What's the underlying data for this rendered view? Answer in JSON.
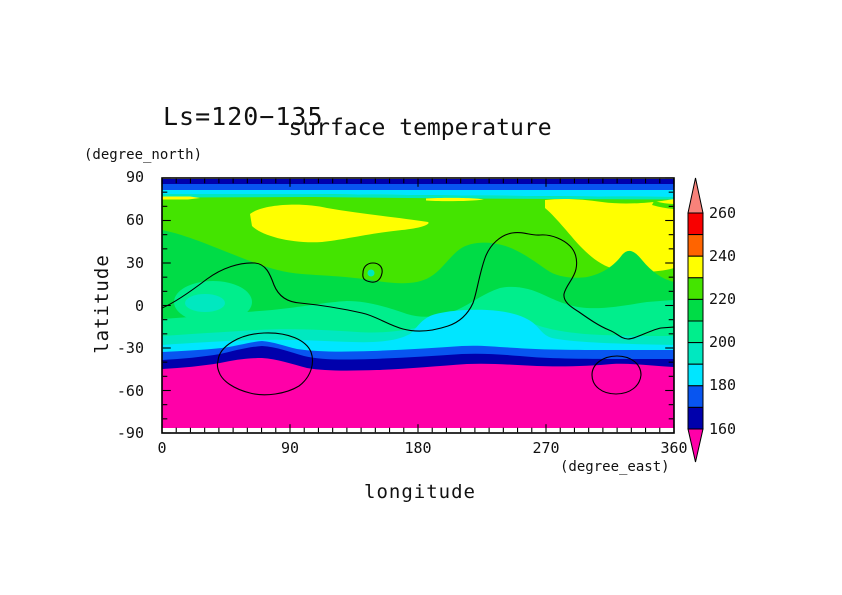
{
  "annotation": "Ls=120−135",
  "title": "surface temperature",
  "axes": {
    "y_unit": "(degree_north)",
    "y_label": "latitude",
    "y_ticks": [
      "90",
      "60",
      "30",
      "0",
      "-30",
      "-60",
      "-90"
    ],
    "x_label": "longitude",
    "x_unit": "(degree_east)",
    "x_ticks": [
      "0",
      "90",
      "180",
      "270",
      "360"
    ]
  },
  "colorbar": {
    "tick_labels": [
      "260",
      "240",
      "220",
      "200",
      "180",
      "160"
    ],
    "cells_top_to_bottom": [
      "c250_260",
      "c240_250",
      "c230_240",
      "c220_230",
      "c210_220",
      "c200_210",
      "c190_200",
      "c180_190",
      "c170_180",
      "c160_170"
    ],
    "arrow_top_color_key": "above_260",
    "arrow_bottom_color_key": "below_160"
  },
  "palette": {
    "above_260": "#F8827A",
    "c250_260": "#F80000",
    "c240_250": "#FF6400",
    "c230_240": "#FFFF00",
    "c220_230": "#44E400",
    "c210_220": "#00DC46",
    "c200_210": "#00EE8C",
    "c190_200": "#00E8C0",
    "c180_190": "#00E6FF",
    "c170_180": "#0855F0",
    "c160_170": "#0000AC",
    "below_160": "#FF00A8",
    "contour_line": "#000000",
    "axis_line": "#000000"
  },
  "chart_data": {
    "type": "heatmap",
    "subtype": "filled_contour_map",
    "title": "surface temperature",
    "annotation": "Ls=120−135",
    "xlabel": "longitude (degree_east)",
    "ylabel": "latitude (degree_north)",
    "xlim": [
      0,
      360
    ],
    "ylim": [
      -90,
      90
    ],
    "x_major_ticks": [
      0,
      90,
      180,
      270,
      360
    ],
    "y_major_ticks": [
      90,
      60,
      30,
      0,
      -30,
      -60,
      -90
    ],
    "contour_levels": [
      160,
      170,
      180,
      190,
      200,
      210,
      220,
      230,
      240,
      250,
      260
    ],
    "colorbar_labeled_levels": [
      260,
      240,
      220,
      200,
      180,
      160
    ],
    "legend_position": "right",
    "grid": false,
    "overlay": "single thin black contour outline meandering across mid-latitudes plus closed ovals near (65E,-43), (310E,-47) and a small closed loop near (147E,24)",
    "lon": [
      0,
      45,
      90,
      135,
      180,
      225,
      270,
      315,
      360
    ],
    "lat": [
      85,
      70,
      55,
      40,
      25,
      10,
      -5,
      -20,
      -30,
      -40,
      -50,
      -60,
      -75,
      -85
    ],
    "values": [
      [
        168,
        168,
        168,
        168,
        168,
        168,
        168,
        168,
        168
      ],
      [
        225,
        225,
        225,
        225,
        225,
        225,
        235,
        235,
        235
      ],
      [
        225,
        225,
        235,
        235,
        225,
        225,
        225,
        235,
        235
      ],
      [
        215,
        225,
        225,
        225,
        225,
        215,
        225,
        235,
        235
      ],
      [
        215,
        215,
        225,
        225,
        225,
        215,
        215,
        215,
        225
      ],
      [
        215,
        205,
        215,
        215,
        215,
        215,
        205,
        215,
        215
      ],
      [
        215,
        205,
        205,
        205,
        215,
        185,
        205,
        205,
        205
      ],
      [
        205,
        195,
        195,
        195,
        185,
        185,
        195,
        195,
        195
      ],
      [
        185,
        180,
        175,
        180,
        185,
        185,
        180,
        180,
        185
      ],
      [
        165,
        162,
        158,
        165,
        168,
        168,
        165,
        165,
        166
      ],
      [
        152,
        152,
        150,
        152,
        154,
        154,
        152,
        150,
        152
      ],
      [
        148,
        148,
        148,
        148,
        148,
        148,
        148,
        148,
        148
      ],
      [
        145,
        145,
        145,
        145,
        145,
        145,
        145,
        145,
        145
      ],
      [
        145,
        145,
        145,
        145,
        145,
        145,
        145,
        145,
        145
      ]
    ]
  }
}
